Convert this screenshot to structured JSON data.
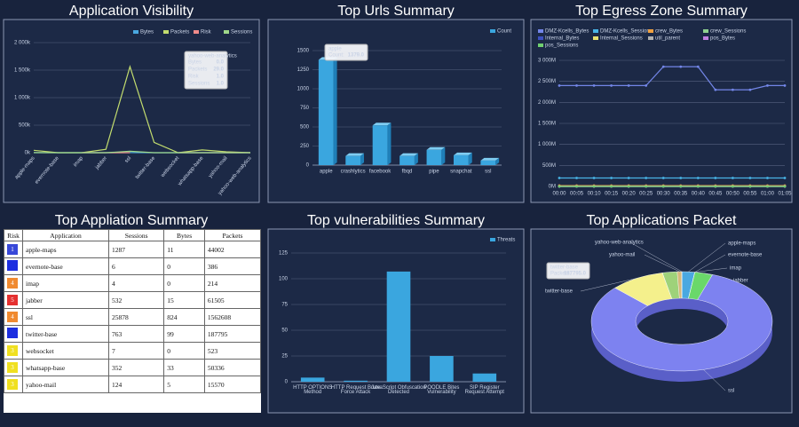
{
  "chart_data": [
    {
      "type": "line",
      "title": "Application Visibility",
      "categories": [
        "apple-maps",
        "evernote-base",
        "imap",
        "jabber",
        "ssl",
        "twitter-base",
        "websocket",
        "whatsapp-base",
        "yahoo-mail",
        "yahoo-web-analytics"
      ],
      "series": [
        {
          "name": "Bytes",
          "color": "#4aa8e0",
          "values": [
            11,
            0,
            0,
            15,
            824,
            99,
            0,
            33,
            5,
            0
          ]
        },
        {
          "name": "Packets",
          "color": "#c2dc6e",
          "values": [
            44002,
            386,
            214,
            61505,
            1562608,
            187795,
            523,
            50336,
            15570,
            29
          ]
        },
        {
          "name": "Risk",
          "color": "#f08a8a",
          "values": [
            1,
            null,
            4,
            5,
            4,
            null,
            3,
            3,
            3,
            1
          ]
        },
        {
          "name": "Sessions",
          "color": "#9fd88a",
          "values": [
            1287,
            6,
            4,
            532,
            25878,
            763,
            7,
            352,
            124,
            1
          ]
        }
      ],
      "ylim": [
        0,
        2000000
      ],
      "yticks": [
        {
          "value": 0,
          "label": "0k"
        },
        {
          "value": 500000,
          "label": "500k"
        },
        {
          "value": 1000000,
          "label": "1 000k"
        },
        {
          "value": 1500000,
          "label": "1 500k"
        },
        {
          "value": 2000000,
          "label": "2 000k"
        }
      ],
      "grid": true,
      "legend": "top-right",
      "tooltip": {
        "title": "yahoo-web-analytics",
        "rows": [
          {
            "name": "Bytes",
            "value": "0.0"
          },
          {
            "name": "Packets",
            "value": "29.0"
          },
          {
            "name": "Risk",
            "value": "1.0"
          },
          {
            "name": "Sessions",
            "value": "1.0"
          }
        ]
      }
    },
    {
      "type": "bar3d",
      "title": "Top Urls Summary",
      "categories": [
        "apple",
        "crashlytics",
        "facebook",
        "fbqd",
        "pipe",
        "snapchat",
        "ssl"
      ],
      "series": [
        {
          "name": "Count",
          "color": "#3aa6df",
          "values": [
            1379,
            120,
            520,
            120,
            200,
            130,
            60
          ]
        }
      ],
      "ylim": [
        0,
        1500
      ],
      "yticks": [
        0,
        250,
        500,
        750,
        1000,
        1250,
        1500
      ],
      "grid": true,
      "legend": "top-right",
      "tooltip": {
        "title": "apple",
        "rows": [
          {
            "name": "Count:",
            "value": "1379.0"
          }
        ]
      }
    },
    {
      "type": "line",
      "title": "Top Egress Zone Summary",
      "categories": [
        "00:00",
        "00:05",
        "00:10",
        "00:15",
        "00:20",
        "00:25",
        "00:30",
        "00:35",
        "00:40",
        "00:45",
        "00:50",
        "00:55",
        "01:00",
        "01:05"
      ],
      "series": [
        {
          "name": "DMZ-Kcells_Bytes",
          "color": "#7386e8",
          "values": [
            2400000000,
            2400000000,
            2400000000,
            2400000000,
            2400000000,
            2400000000,
            2850000000,
            2850000000,
            2850000000,
            2300000000,
            2300000000,
            2300000000,
            2400000000,
            2400000000
          ]
        },
        {
          "name": "DMZ-Kcells_Sessions",
          "color": "#48b4e6",
          "values": [
            200000000,
            200000000,
            200000000,
            200000000,
            200000000,
            200000000,
            200000000,
            200000000,
            200000000,
            200000000,
            200000000,
            200000000,
            200000000,
            200000000
          ]
        },
        {
          "name": "crew_Bytes",
          "color": "#f0a040",
          "values": [
            20000000,
            20000000,
            20000000,
            20000000,
            20000000,
            20000000,
            20000000,
            20000000,
            20000000,
            20000000,
            20000000,
            20000000,
            20000000,
            20000000
          ]
        },
        {
          "name": "crew_Sessions",
          "color": "#8fd18f",
          "values": [
            0,
            0,
            0,
            0,
            0,
            0,
            0,
            0,
            0,
            0,
            0,
            0,
            0,
            0
          ]
        },
        {
          "name": "Internal_Bytes",
          "color": "#3d50c0",
          "values": [
            0,
            0,
            0,
            0,
            0,
            0,
            0,
            0,
            0,
            0,
            0,
            0,
            0,
            0
          ]
        },
        {
          "name": "Internal_Sessions",
          "color": "#e8e070",
          "values": [
            0,
            0,
            0,
            0,
            0,
            0,
            0,
            0,
            0,
            0,
            0,
            0,
            0,
            0
          ]
        },
        {
          "name": "util_parent",
          "color": "#b0b0b0",
          "values": [
            0,
            0,
            0,
            0,
            0,
            0,
            0,
            0,
            0,
            0,
            0,
            0,
            0,
            0
          ]
        },
        {
          "name": "pos_Bytes",
          "color": "#c080e0",
          "values": [
            0,
            0,
            0,
            0,
            0,
            0,
            0,
            0,
            0,
            0,
            0,
            0,
            0,
            0
          ]
        },
        {
          "name": "pos_Sessions",
          "color": "#70d070",
          "values": [
            0,
            0,
            0,
            0,
            0,
            0,
            0,
            0,
            0,
            0,
            0,
            0,
            0,
            0
          ]
        }
      ],
      "ylim": [
        0,
        3000000000
      ],
      "yticks": [
        {
          "value": 0,
          "label": "0M"
        },
        {
          "value": 500000000,
          "label": "500M"
        },
        {
          "value": 1000000000,
          "label": "1 000M"
        },
        {
          "value": 1500000000,
          "label": "1 500M"
        },
        {
          "value": 2000000000,
          "label": "2 000M"
        },
        {
          "value": 2500000000,
          "label": "2 500M"
        },
        {
          "value": 3000000000,
          "label": "3 000M"
        }
      ],
      "grid": true,
      "legend": "top-left"
    },
    {
      "type": "bar",
      "title": "Top vulnerabilities Summary",
      "categories": [
        "HTTP OPTIONS Method",
        "HTTP Request Brute Force Attack",
        "JavaScript Obfuscation Detected",
        "POODLE Bites Vulnerability",
        "SIP Register Request Attempt"
      ],
      "series": [
        {
          "name": "Threats",
          "color": "#3aa6df",
          "values": [
            4,
            1,
            107,
            25,
            8
          ]
        }
      ],
      "ylim": [
        0,
        125
      ],
      "yticks": [
        0,
        25,
        50,
        75,
        100,
        125
      ],
      "grid": true,
      "legend": "top-right"
    },
    {
      "type": "pie",
      "title": "Top Applications Packet",
      "categories": [
        "apple-maps",
        "evernote-base",
        "imap",
        "jabber",
        "ssl",
        "twitter-base",
        "websocket",
        "whatsapp-base",
        "yahoo-mail",
        "yahoo-web-analytics"
      ],
      "values": [
        44002,
        386,
        214,
        61505,
        1562608,
        187795,
        523,
        50336,
        15570,
        29
      ],
      "colors": [
        "#4aa8e0",
        "#3d50c0",
        "#8fd18f",
        "#6ad86a",
        "#7d82f0",
        "#f4f08c",
        "#b07ae0",
        "#9ed27a",
        "#d6b87a",
        "#e8e070"
      ],
      "tooltip": {
        "title": "twitter-base",
        "rows": [
          {
            "name": "Packets:",
            "value": "187795.0"
          }
        ]
      }
    }
  ],
  "table": {
    "title": "Top Appliation Summary",
    "columns": [
      "Risk",
      "Application",
      "Sessions",
      "Bytes",
      "Packets"
    ],
    "rows": [
      [
        1,
        "apple-maps",
        1287,
        11,
        44002
      ],
      [
        null,
        "evernote-base",
        6,
        0,
        386
      ],
      [
        4,
        "imap",
        4,
        0,
        214
      ],
      [
        5,
        "jabber",
        532,
        15,
        61505
      ],
      [
        4,
        "ssl",
        25878,
        824,
        1562608
      ],
      [
        null,
        "twitter-base",
        763,
        99,
        187795
      ],
      [
        3,
        "websocket",
        7,
        0,
        523
      ],
      [
        3,
        "whatsapp-base",
        352,
        33,
        50336
      ],
      [
        3,
        "yahoo-mail",
        124,
        5,
        15570
      ]
    ],
    "row_colors": [
      "#3848d8",
      "#1c2ee0",
      "#f08a30",
      "#e53030",
      "#f08a30",
      "#1c2ee0",
      "#f0e020",
      "#f0e020",
      "#f0e020"
    ]
  }
}
